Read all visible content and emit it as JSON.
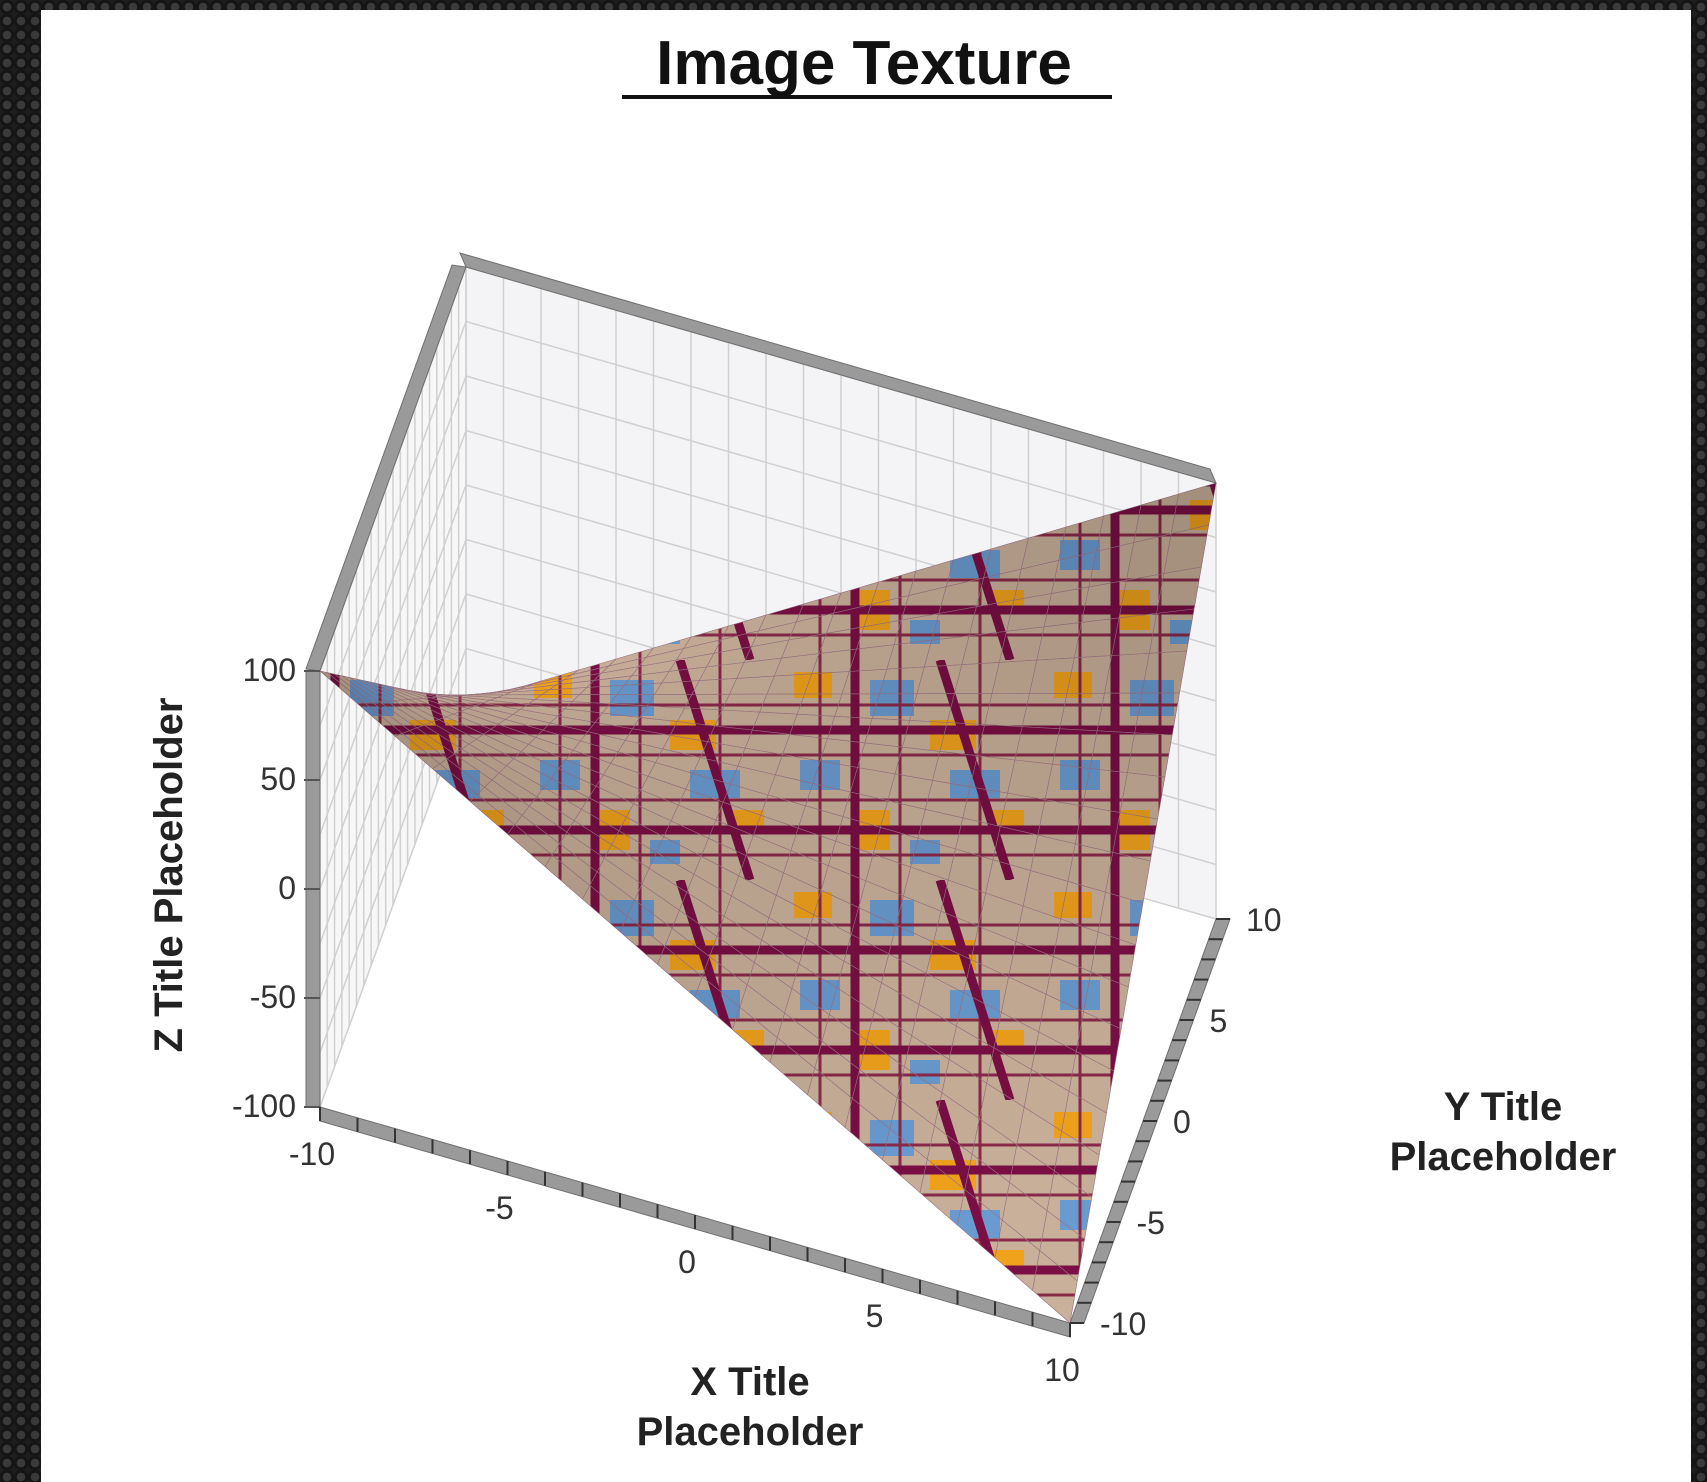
{
  "chart_data": {
    "type": "surface",
    "title": "Image Texture",
    "xlabel": "X Title Placeholder",
    "ylabel": "Y Title Placeholder",
    "zlabel": "Z Title Placeholder",
    "xlim": [
      -10,
      10
    ],
    "ylim": [
      -10,
      10
    ],
    "zlim": [
      -100,
      100
    ],
    "x_ticks": [
      "-10",
      "-5",
      "0",
      "5",
      "10"
    ],
    "y_ticks": [
      "-10",
      "-5",
      "0",
      "5",
      "10"
    ],
    "z_ticks": [
      "-100",
      "-50",
      "0",
      "50",
      "100"
    ],
    "function": "z = x * y",
    "texture": "street map image",
    "grid": true
  }
}
